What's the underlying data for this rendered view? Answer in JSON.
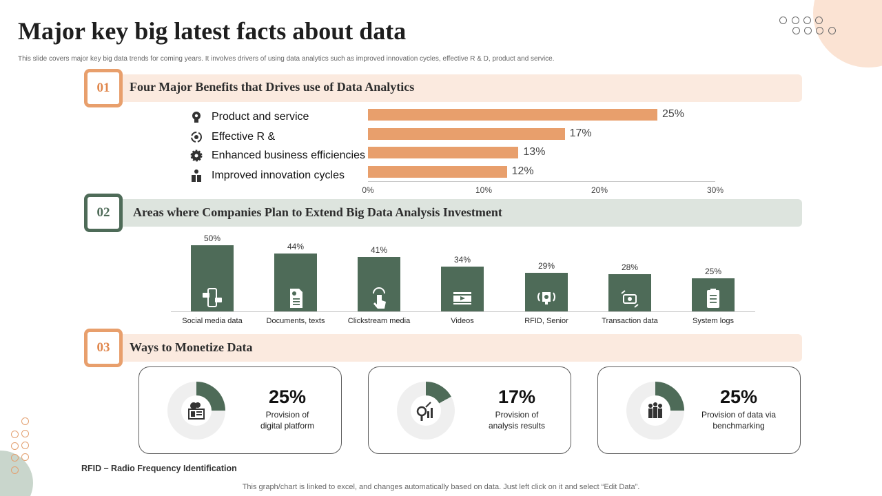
{
  "title": "Major key big latest facts about data",
  "subtitle": "This slide covers major key big data trends for coming years. It involves drivers of using data analytics such as improved innovation cycles, effective R & D, product and service.",
  "colors": {
    "orange": "#e89f6c",
    "green": "#4e6b58",
    "peach_bg": "#fbeadf",
    "green_bg": "#dde4de",
    "donut_bg": "#efefef"
  },
  "sections": [
    {
      "number": "01",
      "title": "Four Major Benefits that Drives use of  Data Analytics"
    },
    {
      "number": "02",
      "title": "Areas where Companies Plan to Extend Big Data Analysis Investment"
    },
    {
      "number": "03",
      "title": "Ways to Monetize Data"
    }
  ],
  "chart_data": [
    {
      "type": "bar",
      "orientation": "horizontal",
      "categories": [
        "Product and service",
        "Effective R &",
        "Enhanced business efficiencies",
        "Improved innovation cycles"
      ],
      "values": [
        25,
        17,
        13,
        12
      ],
      "value_labels": [
        "25%",
        "17%",
        "13%",
        "12%"
      ],
      "icons": [
        "lightbulb-gear-icon",
        "process-cycle-icon",
        "gear-icon",
        "lightbulb-box-icon"
      ],
      "xlim": [
        0,
        30
      ],
      "x_ticks": [
        "0%",
        "10%",
        "20%",
        "30%"
      ],
      "grid": false
    },
    {
      "type": "bar",
      "orientation": "vertical",
      "categories": [
        "Social media data",
        "Documents, texts",
        "Clickstream media",
        "Videos",
        "RFID, Senior",
        "Transaction data",
        "System logs"
      ],
      "values": [
        50,
        44,
        41,
        34,
        29,
        28,
        25
      ],
      "value_labels": [
        "50%",
        "44%",
        "41%",
        "34%",
        "29%",
        "28%",
        "25%"
      ],
      "icons": [
        "social-media-icon",
        "document-icon",
        "click-icon",
        "video-icon",
        "rfid-icon",
        "transaction-icon",
        "clipboard-icon"
      ],
      "ylim": [
        0,
        50
      ],
      "grid": false
    },
    {
      "type": "pie",
      "variant": "donut-set",
      "items": [
        {
          "value": 25,
          "pct": "25%",
          "label": "Provision of digital platform",
          "label_lines": [
            "Provision of",
            "digital platform"
          ],
          "icon": "digital-platform-icon"
        },
        {
          "value": 17,
          "pct": "17%",
          "label": "Provision of analysis results",
          "label_lines": [
            "Provision of",
            "analysis results"
          ],
          "icon": "analysis-icon"
        },
        {
          "value": 25,
          "pct": "25%",
          "label": "Provision of data via benchmarking",
          "label_lines": [
            "Provision of data via",
            "benchmarking"
          ],
          "icon": "team-icon"
        }
      ]
    }
  ],
  "rfid_note": "RFID – Radio Frequency Identification",
  "footer_note": "This graph/chart is linked to excel,  and changes automatically based on data. Just left click on it and select “Edit Data”."
}
